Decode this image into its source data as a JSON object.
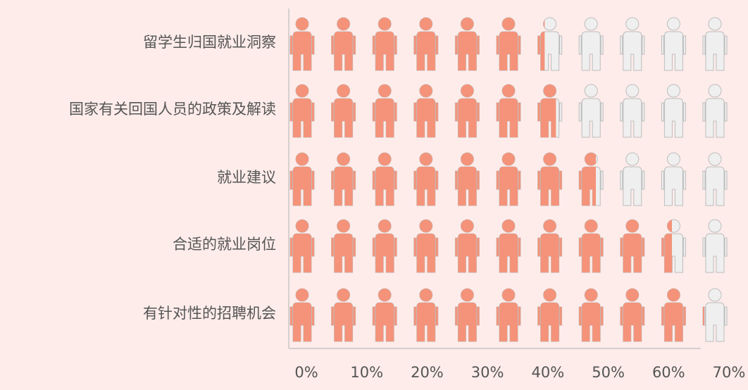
{
  "chart_data": {
    "type": "pictograph",
    "categories": [
      "留学生归国就业洞察",
      "国家有关回国人员的政策及解读",
      "就业建议",
      "合适的就业岗位",
      "有针对性的招聘机会"
    ],
    "values": [
      40,
      43,
      49,
      60,
      64
    ],
    "color": "#f4937a",
    "empty_color": "#efefef",
    "icons_per_row": 11,
    "xlim": [
      0,
      70
    ],
    "xticks": [
      {
        "value": 0,
        "label": "0%"
      },
      {
        "value": 10,
        "label": "10%"
      },
      {
        "value": 20,
        "label": "20%"
      },
      {
        "value": 30,
        "label": "30%"
      },
      {
        "value": 40,
        "label": "40%"
      },
      {
        "value": 50,
        "label": "50%"
      },
      {
        "value": 60,
        "label": "60%"
      },
      {
        "value": 70,
        "label": "70%"
      }
    ]
  }
}
